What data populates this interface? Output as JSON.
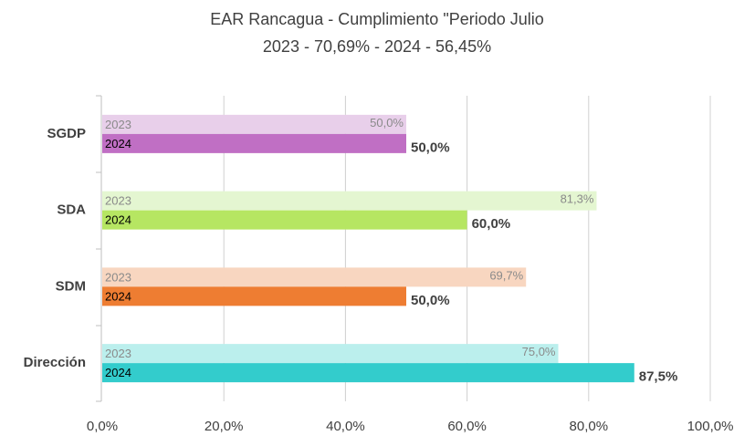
{
  "chart_data": {
    "type": "hbar",
    "title": "EAR Rancagua - Cumplimiento \"Periodo Julio",
    "subtitle": "2023 - 70,69%  - 2024 - 56,45%",
    "categories": [
      "SGDP",
      "SDA",
      "SDM",
      "Dirección"
    ],
    "series": [
      {
        "name": "2023",
        "colors": [
          "#e8cfea",
          "#e4f6d1",
          "#f8d6c0",
          "#bbefed"
        ],
        "values": [
          50.0,
          81.3,
          69.7,
          75.0
        ],
        "value_labels": [
          "50,0%",
          "81,3%",
          "69,7%",
          "75,0%"
        ]
      },
      {
        "name": "2024",
        "colors": [
          "#c06fc4",
          "#b6e662",
          "#ee7d32",
          "#33cccc"
        ],
        "values": [
          50.0,
          60.0,
          50.0,
          87.5
        ],
        "value_labels": [
          "50,0%",
          "60,0%",
          "50,0%",
          "87,5%"
        ]
      }
    ],
    "xlim": [
      0,
      100
    ],
    "xticks": [
      {
        "value": 0,
        "label": "0,0%"
      },
      {
        "value": 20,
        "label": "20,0%"
      },
      {
        "value": 40,
        "label": "40,0%"
      },
      {
        "value": 60,
        "label": "60,0%"
      },
      {
        "value": 80,
        "label": "80,0%"
      },
      {
        "value": 100,
        "label": "100,0%"
      }
    ],
    "grid": true
  }
}
